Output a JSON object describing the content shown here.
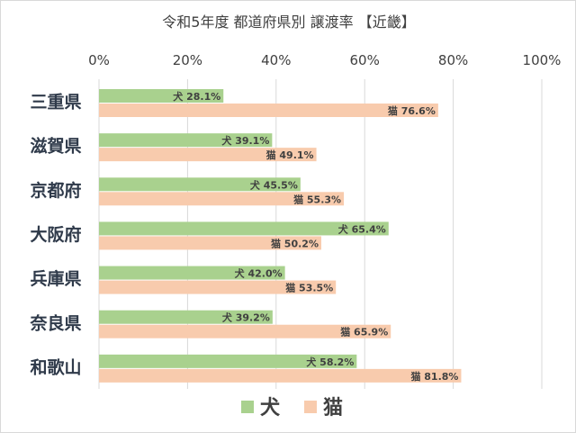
{
  "chart_data": {
    "type": "bar",
    "orientation": "horizontal",
    "title": "令和5年度 都道府県別 譲渡率 【近畿】",
    "categories": [
      "三重県",
      "滋賀県",
      "京都府",
      "大阪府",
      "兵庫県",
      "奈良県",
      "和歌山"
    ],
    "series": [
      {
        "name": "犬",
        "color": "#a9d18e",
        "values": [
          28.1,
          39.1,
          45.5,
          65.4,
          42.0,
          39.2,
          58.2
        ]
      },
      {
        "name": "猫",
        "color": "#f8cbad",
        "values": [
          76.6,
          49.1,
          55.3,
          50.2,
          53.5,
          65.9,
          81.8
        ]
      }
    ],
    "xlim": [
      0,
      100
    ],
    "xticks": [
      "0%",
      "20%",
      "40%",
      "60%",
      "80%",
      "100%"
    ],
    "axis_position": "top",
    "grid": true,
    "legend": "bottom",
    "data_label_suffix": "%"
  }
}
